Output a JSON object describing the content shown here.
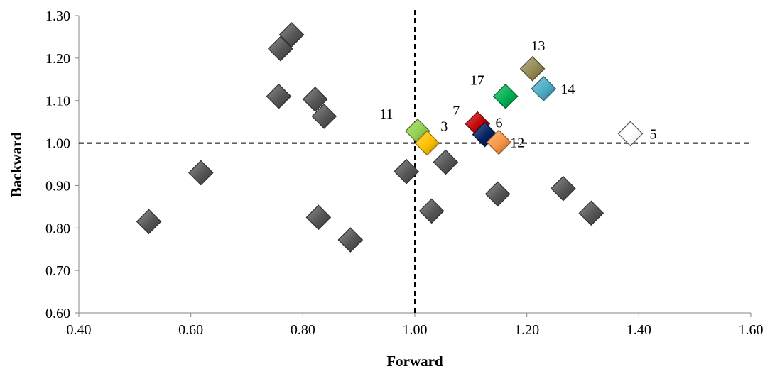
{
  "chart_data": {
    "type": "scatter",
    "title": "",
    "xlabel": "Forward",
    "ylabel": "Backward",
    "xlim": [
      0.4,
      1.6
    ],
    "ylim": [
      0.6,
      1.3
    ],
    "xticks": [
      "0.40",
      "0.60",
      "0.80",
      "1.00",
      "1.20",
      "1.40",
      "1.60"
    ],
    "yticks": [
      "0.60",
      "0.70",
      "0.80",
      "0.90",
      "1.00",
      "1.10",
      "1.20",
      "1.30"
    ],
    "grid": false,
    "reference_lines": {
      "x": 1.0,
      "y": 1.0,
      "style": "dashed"
    },
    "points": [
      {
        "x": 0.525,
        "y": 0.815,
        "color": "#555555"
      },
      {
        "x": 0.618,
        "y": 0.93,
        "color": "#555555"
      },
      {
        "x": 0.76,
        "y": 1.222,
        "color": "#555555"
      },
      {
        "x": 0.78,
        "y": 1.255,
        "color": "#555555"
      },
      {
        "x": 0.757,
        "y": 1.11,
        "color": "#555555"
      },
      {
        "x": 0.822,
        "y": 1.103,
        "color": "#555555"
      },
      {
        "x": 0.838,
        "y": 1.063,
        "color": "#555555"
      },
      {
        "x": 0.828,
        "y": 0.825,
        "color": "#555555"
      },
      {
        "x": 0.885,
        "y": 0.772,
        "color": "#555555"
      },
      {
        "x": 0.985,
        "y": 0.933,
        "color": "#555555"
      },
      {
        "x": 1.055,
        "y": 0.955,
        "color": "#555555"
      },
      {
        "x": 1.03,
        "y": 0.84,
        "color": "#555555"
      },
      {
        "x": 1.148,
        "y": 0.88,
        "color": "#555555"
      },
      {
        "x": 1.265,
        "y": 0.893,
        "color": "#555555"
      },
      {
        "x": 1.315,
        "y": 0.835,
        "color": "#555555"
      },
      {
        "x": 1.005,
        "y": 1.028,
        "color": "#92D050",
        "label": "11"
      },
      {
        "x": 1.022,
        "y": 1.0,
        "color": "#FFC000",
        "label": "3"
      },
      {
        "x": 1.112,
        "y": 1.045,
        "color": "#C00000",
        "label": "7"
      },
      {
        "x": 1.125,
        "y": 1.02,
        "color": "#002060",
        "label": "6"
      },
      {
        "x": 1.15,
        "y": 1.002,
        "color": "#F79646",
        "label": "12"
      },
      {
        "x": 1.162,
        "y": 1.11,
        "color": "#00B050",
        "label": "17"
      },
      {
        "x": 1.21,
        "y": 1.175,
        "color": "#948A54",
        "label": "13"
      },
      {
        "x": 1.23,
        "y": 1.128,
        "color": "#4BACC6",
        "label": "14"
      },
      {
        "x": 1.385,
        "y": 1.022,
        "color": "#FFFFFF",
        "label": "5"
      }
    ]
  }
}
